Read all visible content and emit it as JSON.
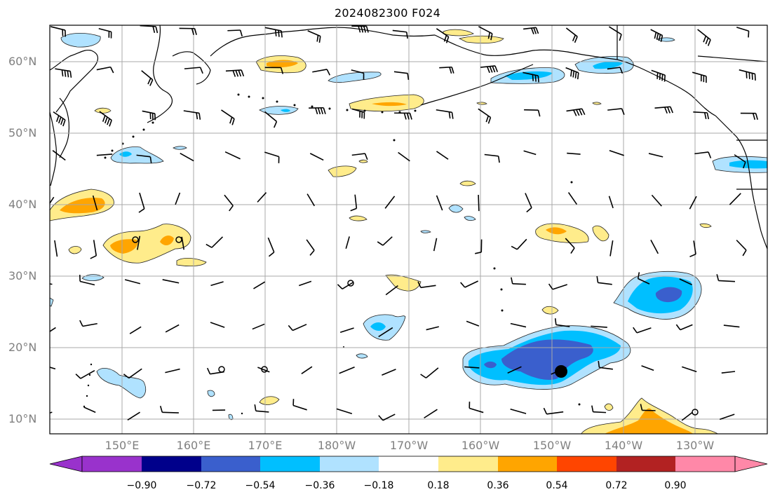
{
  "title": "2024082300 F024",
  "lat_labels": [
    "10°N",
    "20°N",
    "30°N",
    "40°N",
    "50°N",
    "60°N"
  ],
  "lon_labels": [
    "150°E",
    "160°E",
    "170°E",
    "180°W",
    "170°W",
    "160°W",
    "150°W",
    "140°W",
    "130°W"
  ],
  "colorbar": {
    "labels": [
      "−0.90",
      "−0.72",
      "−0.54",
      "−0.36",
      "−0.18",
      "0.18",
      "0.36",
      "0.54",
      "0.72",
      "0.90"
    ],
    "colors": [
      "#9932cc",
      "#00008b",
      "#3a5fcd",
      "#00bfff",
      "#b0e2ff",
      "#ffffff",
      "#ffec8b",
      "#ffa500",
      "#ff4500",
      "#b22222",
      "#ff88a8"
    ]
  },
  "colors": {
    "grid": "#a8a8a8",
    "coast": "#000000",
    "tick_label": "#808080"
  }
}
